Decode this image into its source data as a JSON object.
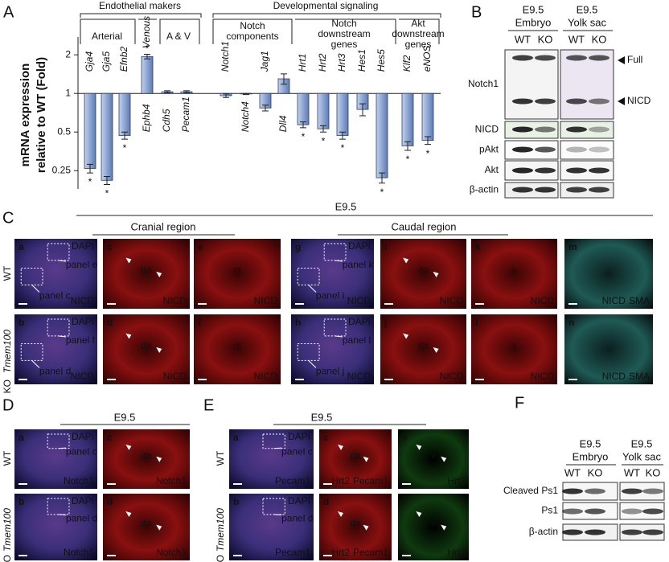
{
  "chart_data": {
    "type": "bar",
    "panel": "A",
    "y_label": [
      "mRNA expression",
      "relative to WT (Fold)"
    ],
    "groups": [
      "Endothelial makers",
      "Developmental signaling"
    ],
    "subgroups": [
      [
        "Arterial"
      ],
      [
        "Venous"
      ],
      [
        "A & V"
      ],
      [
        "Notch",
        "components"
      ],
      [
        "Notch",
        "downstream",
        "genes"
      ],
      [
        "Akt",
        "downstream",
        "genes"
      ]
    ],
    "categories": [
      "Gja4",
      "Gja5",
      "Efnb2",
      "Ephb4",
      "Cdh5",
      "Pecam1",
      "Notch1",
      "Notch4",
      "Jag1",
      "Dll4",
      "Hrt1",
      "Hrt2",
      "Hrt3",
      "Hes1",
      "Hes5",
      "Klf2",
      "eNOS"
    ],
    "values": [
      0.26,
      0.21,
      0.47,
      1.94,
      1.03,
      1.03,
      0.96,
      0.99,
      0.77,
      1.3,
      0.57,
      0.53,
      0.47,
      0.75,
      0.22,
      0.39,
      0.43
    ],
    "errors": [
      0.02,
      0.015,
      0.03,
      0.08,
      0.02,
      0.02,
      0.03,
      0.01,
      0.04,
      0.12,
      0.03,
      0.03,
      0.03,
      0.08,
      0.02,
      0.03,
      0.03
    ],
    "significance": [
      "*",
      "*",
      "*",
      "*",
      null,
      null,
      null,
      null,
      null,
      null,
      "*",
      "*",
      "*",
      null,
      "*",
      "*",
      "*"
    ],
    "color": "#8ea6d2",
    "log_scale": true,
    "ylim": [
      0.18,
      2.6
    ],
    "yticks": [
      0.25,
      0.5,
      1,
      2
    ]
  },
  "panel_b": {
    "letter": "B",
    "groups": [
      [
        "E9.5",
        "Embryo"
      ],
      [
        "E9.5",
        "Yolk sac"
      ]
    ],
    "lanes": [
      "WT",
      "KO",
      "WT",
      "KO"
    ],
    "rows": [
      "Notch1",
      "NICD",
      "pAkt",
      "Akt",
      "β-actin"
    ],
    "bands": [
      "Full",
      "NICD"
    ]
  },
  "panel_c": {
    "letter": "C",
    "stage": "E9.5",
    "regions": [
      "Cranial region",
      "Caudal region"
    ],
    "genotypes": [
      "WT",
      "Tmem100",
      "KO"
    ],
    "tiles": [
      {
        "letter": "a",
        "stain": "DAPI",
        "markers": [
          {
            "label": "NICD",
            "color": "#ff2a2a"
          }
        ],
        "callouts": [
          "panel e",
          "panel c"
        ]
      },
      {
        "letter": "b",
        "stain": "DAPI",
        "markers": [
          {
            "label": "NICD",
            "color": "#ff2a2a"
          }
        ],
        "callouts": [
          "panel f",
          "panel d"
        ]
      },
      {
        "letter": "c",
        "structure": "da",
        "markers": [
          {
            "label": "NICD",
            "color": "#ff2a2a"
          }
        ]
      },
      {
        "letter": "d",
        "structure": "da",
        "markers": [
          {
            "label": "NICD",
            "color": "#ff2a2a"
          }
        ]
      },
      {
        "letter": "e",
        "structure": "nt",
        "markers": [
          {
            "label": "NICD",
            "color": "#ff2a2a"
          }
        ]
      },
      {
        "letter": "f",
        "structure": "nt",
        "markers": [
          {
            "label": "NICD",
            "color": "#ff2a2a"
          }
        ]
      },
      {
        "letter": "g",
        "stain": "DAPI",
        "markers": [
          {
            "label": "NICD",
            "color": "#ff2a2a"
          }
        ],
        "callouts": [
          "panel k",
          "panel i"
        ]
      },
      {
        "letter": "h",
        "stain": "DAPI",
        "markers": [
          {
            "label": "NICD",
            "color": "#ff2a2a"
          }
        ],
        "callouts": [
          "panel l",
          "panel j"
        ]
      },
      {
        "letter": "i",
        "structure": "da",
        "markers": [
          {
            "label": "NICD",
            "color": "#ff2a2a"
          }
        ]
      },
      {
        "letter": "j",
        "structure": "da",
        "markers": [
          {
            "label": "NICD",
            "color": "#ff2a2a"
          }
        ]
      },
      {
        "letter": "k",
        "structure": "s",
        "markers": [
          {
            "label": "NICD",
            "color": "#ff2a2a"
          }
        ]
      },
      {
        "letter": "l",
        "structure": "s",
        "markers": [
          {
            "label": "NICD",
            "color": "#ff2a2a"
          }
        ]
      },
      {
        "letter": "m",
        "markers": [
          {
            "label": "NICD",
            "color": "#ff2a2a"
          },
          {
            "label": "SMA",
            "color": "#4fc04f"
          }
        ]
      },
      {
        "letter": "n",
        "markers": [
          {
            "label": "NICD",
            "color": "#ff2a2a"
          },
          {
            "label": "SMA",
            "color": "#4fc04f"
          }
        ]
      }
    ]
  },
  "panel_d": {
    "letter": "D",
    "stage": "E9.5",
    "genotypes": [
      "WT",
      "Tmem100",
      "KO"
    ],
    "tiles": [
      {
        "letter": "a",
        "stain": "DAPI",
        "markers": [
          {
            "label": "Notch1",
            "color": "#ff2a2a"
          }
        ],
        "callouts": [
          "panel c"
        ]
      },
      {
        "letter": "b",
        "stain": "DAPI",
        "markers": [
          {
            "label": "Notch1",
            "color": "#ff2a2a"
          }
        ],
        "callouts": [
          "panel d"
        ]
      },
      {
        "letter": "c",
        "structure": "da",
        "markers": [
          {
            "label": "Notch1",
            "color": "#ff2a2a"
          }
        ]
      },
      {
        "letter": "d",
        "structure": "da",
        "markers": [
          {
            "label": "Notch1",
            "color": "#ff2a2a"
          }
        ]
      }
    ]
  },
  "panel_e": {
    "letter": "E",
    "stage": "E9.5",
    "genotypes": [
      "WT",
      "Tmem100",
      "KO"
    ],
    "tiles": [
      {
        "letter": "a",
        "stain": "DAPI",
        "markers": [
          {
            "label": "Pecam1",
            "color": "#ff2a2a"
          }
        ],
        "callouts": [
          "panel c"
        ]
      },
      {
        "letter": "b",
        "stain": "DAPI",
        "markers": [
          {
            "label": "Pecam1",
            "color": "#ff2a2a"
          }
        ],
        "callouts": [
          "panel d"
        ]
      },
      {
        "letter": "c",
        "structure": "da",
        "markers": [
          {
            "label": "Hrt2",
            "color": "#4fc04f"
          },
          {
            "label": "Pecam1",
            "color": "#ff2a2a"
          }
        ]
      },
      {
        "letter": "d",
        "structure": "da",
        "markers": [
          {
            "label": "Hrt2",
            "color": "#4fc04f"
          },
          {
            "label": "Pecam1",
            "color": "#ff2a2a"
          }
        ]
      },
      {
        "letter": "e",
        "structure": "v",
        "markers": [
          {
            "label": "Hrt2",
            "color": "#4fc04f"
          }
        ]
      },
      {
        "letter": "f",
        "structure": "v",
        "markers": [
          {
            "label": "Hrt2",
            "color": "#4fc04f"
          }
        ]
      }
    ]
  },
  "panel_f": {
    "letter": "F",
    "groups": [
      [
        "E9.5",
        "Embryo"
      ],
      [
        "E9.5",
        "Yolk sac"
      ]
    ],
    "lanes": [
      "WT",
      "KO",
      "WT",
      "KO"
    ],
    "rows": [
      "Cleaved Ps1",
      "Ps1",
      "β-actin"
    ]
  }
}
